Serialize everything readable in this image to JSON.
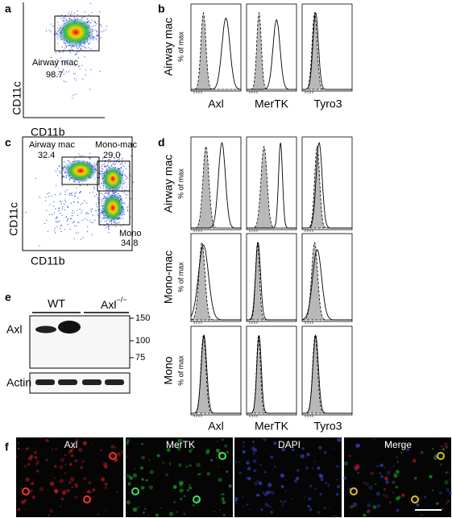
{
  "panel_a": {
    "label": "a",
    "x_axis": "CD11b",
    "y_axis": "CD11c",
    "gates": [
      {
        "name": "Airway mac",
        "value": "98.7"
      }
    ]
  },
  "panel_b": {
    "label": "b",
    "rows": [
      {
        "name": "Airway mac"
      }
    ],
    "y_unit": "% of max",
    "columns": [
      "Axl",
      "MerTK",
      "Tyro3"
    ]
  },
  "panel_c": {
    "label": "c",
    "x_axis": "CD11b",
    "y_axis": "CD11c",
    "gates": [
      {
        "name": "Airway mac",
        "value": "32.4"
      },
      {
        "name": "Mono-mac",
        "value": "29.0"
      },
      {
        "name": "Mono",
        "value": "34.8"
      }
    ]
  },
  "panel_d": {
    "label": "d",
    "rows": [
      {
        "name": "Airway mac"
      },
      {
        "name": "Mono-mac"
      },
      {
        "name": "Mono"
      }
    ],
    "y_unit": "% of max",
    "columns": [
      "Axl",
      "MerTK",
      "Tyro3"
    ]
  },
  "panel_e": {
    "label": "e",
    "genotypes": [
      "WT",
      {
        "text": "Axl",
        "superscript": "−/−"
      }
    ],
    "blots": [
      "Axl",
      "Actin"
    ],
    "markers": [
      150,
      100,
      75
    ]
  },
  "panel_f": {
    "label": "f",
    "channels": [
      "Axl",
      "MerTK",
      "DAPI",
      "Merge"
    ]
  }
}
